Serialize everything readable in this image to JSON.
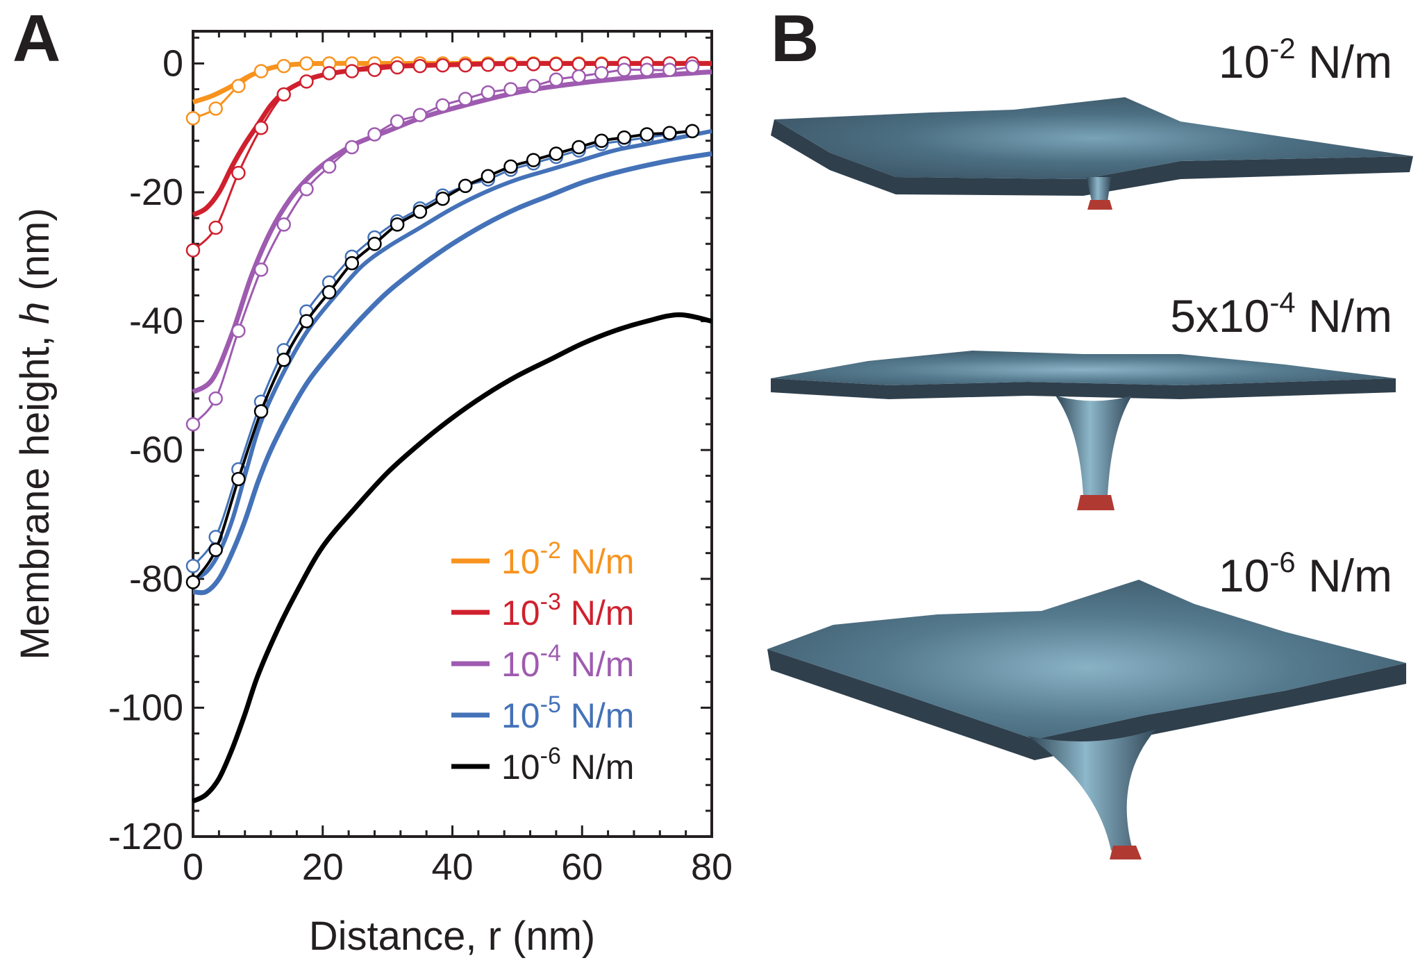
{
  "panels": {
    "a_label": "A",
    "b_label": "B"
  },
  "colors": {
    "orange": "#f7931e",
    "red": "#d0202e",
    "purple": "#9e5bb0",
    "blue": "#4472b8",
    "black": "#000000",
    "surface_top": "#5a7f93",
    "surface_side": "#2f3f4c",
    "tip": "#b03a32"
  },
  "chart_data": {
    "type": "line",
    "title": "",
    "xlabel": "Distance, r (nm)",
    "ylabel_prefix": "Membrane height, ",
    "ylabel_var": "h",
    "ylabel_suffix": " (nm)",
    "xlim": [
      0,
      80
    ],
    "ylim": [
      -120,
      5
    ],
    "xticks": [
      0,
      20,
      40,
      60,
      80
    ],
    "yticks": [
      0,
      -20,
      -40,
      -60,
      -80,
      -100,
      -120
    ],
    "series": [
      {
        "name": "1e-2 solid",
        "legend_base": "10",
        "legend_exp": "-2",
        "legend_unit": " N/m",
        "color_key": "orange",
        "marker": false,
        "x": [
          0,
          3,
          6,
          9,
          12,
          15,
          20,
          30,
          40,
          60,
          80
        ],
        "y": [
          -6,
          -5,
          -3.5,
          -1.8,
          -0.7,
          -0.2,
          0,
          0,
          0,
          0,
          0
        ]
      },
      {
        "name": "1e-2 markers",
        "color_key": "orange",
        "marker": true,
        "x": [
          0,
          3.5,
          7,
          10.5,
          14,
          17.5,
          21,
          24.5,
          28,
          31.5,
          35,
          38.5,
          42,
          45.5,
          49,
          52.5,
          56,
          59.5,
          63,
          66.5,
          70,
          73.5,
          77
        ],
        "y": [
          -8.5,
          -7,
          -3.5,
          -1.2,
          -0.4,
          0,
          0,
          0,
          0,
          0,
          0,
          0,
          0,
          0,
          0,
          0,
          0,
          0,
          0,
          0,
          0,
          0,
          0
        ]
      },
      {
        "name": "1e-3 solid",
        "legend_base": "10",
        "legend_exp": "-3",
        "legend_unit": " N/m",
        "color_key": "red",
        "marker": false,
        "x": [
          0,
          2,
          4,
          6,
          8,
          10,
          12,
          14,
          17,
          20,
          25,
          30,
          40,
          50,
          60,
          80
        ],
        "y": [
          -23.5,
          -22.5,
          -20,
          -16,
          -12.5,
          -9.5,
          -6.5,
          -4.5,
          -2.8,
          -1.8,
          -1,
          -0.5,
          -0.2,
          0,
          0,
          0
        ]
      },
      {
        "name": "1e-3 markers",
        "color_key": "red",
        "marker": true,
        "x": [
          0,
          3.5,
          7,
          10.5,
          14,
          17.5,
          21,
          24.5,
          28,
          31.5,
          35,
          38.5,
          42,
          45.5,
          49,
          52.5,
          56,
          59.5,
          63,
          66.5,
          70,
          73.5,
          77
        ],
        "y": [
          -29,
          -25.5,
          -17,
          -10,
          -4.8,
          -2.8,
          -1.5,
          -1.2,
          -1,
          -0.6,
          -0.4,
          -0.3,
          -0.3,
          -0.2,
          -0.2,
          -0.1,
          -0.1,
          -0.1,
          -0.1,
          0,
          0,
          0,
          0
        ]
      },
      {
        "name": "1e-4 solid",
        "legend_base": "10",
        "legend_exp": "-4",
        "legend_unit": " N/m",
        "color_key": "purple",
        "marker": false,
        "x": [
          0,
          3,
          6,
          9,
          12,
          15,
          18,
          21,
          25,
          30,
          35,
          40,
          50,
          60,
          70,
          80
        ],
        "y": [
          -51,
          -49,
          -42,
          -33,
          -26,
          -21,
          -17.5,
          -15,
          -12.5,
          -10.5,
          -8.5,
          -7,
          -4.5,
          -3,
          -2,
          -1.3
        ]
      },
      {
        "name": "1e-4 markers",
        "color_key": "purple",
        "marker": true,
        "x": [
          0,
          3.5,
          7,
          10.5,
          14,
          17.5,
          21,
          24.5,
          28,
          31.5,
          35,
          38.5,
          42,
          45.5,
          49,
          52.5,
          56,
          59.5,
          63,
          66.5,
          70,
          73.5,
          77
        ],
        "y": [
          -56,
          -52,
          -41.5,
          -32,
          -25,
          -19.5,
          -16,
          -13,
          -11,
          -9,
          -8,
          -6.5,
          -5.5,
          -4.5,
          -4,
          -3.5,
          -2.5,
          -2,
          -1.5,
          -1,
          -1,
          -1,
          -0.5
        ]
      },
      {
        "name": "1e-5 solid",
        "legend_base": "10",
        "legend_exp": "-5",
        "legend_unit": " N/m",
        "color_key": "blue",
        "marker": false,
        "x": [
          0,
          2,
          4,
          6,
          8,
          10,
          12,
          15,
          18,
          22,
          26,
          30,
          35,
          40,
          45,
          50,
          55,
          60,
          65,
          70,
          75,
          80
        ],
        "y": [
          -82,
          -82,
          -80,
          -76,
          -71,
          -65,
          -60,
          -54,
          -49,
          -44,
          -39.5,
          -35.5,
          -31.5,
          -28,
          -25,
          -22.5,
          -20.5,
          -18.5,
          -17,
          -15.8,
          -14.8,
          -14
        ]
      },
      {
        "name": "1e-5 markers",
        "color_key": "blue",
        "marker": true,
        "x": [
          0,
          3.5,
          7,
          10.5,
          14,
          17.5,
          21,
          24.5,
          28,
          31.5,
          35,
          38.5,
          42,
          45.5,
          49,
          52.5,
          56,
          59.5,
          63,
          66.5,
          70,
          73.5,
          77
        ],
        "y": [
          -78,
          -73.5,
          -63,
          -52.5,
          -44.5,
          -38.5,
          -34,
          -30,
          -27,
          -24.5,
          -22.5,
          -20.5,
          -19,
          -18,
          -16.5,
          -15.5,
          -14.5,
          -13.5,
          -12.5,
          -12,
          -11.5,
          -11,
          -10.5
        ]
      },
      {
        "name": "1e-6 solid",
        "legend_base": "10",
        "legend_exp": "-6",
        "legend_unit": " N/m",
        "color_key": "black",
        "marker": false,
        "x": [
          0,
          2,
          4,
          6,
          8,
          10,
          13,
          16,
          20,
          25,
          30,
          35,
          40,
          45,
          50,
          55,
          60,
          65,
          70,
          75,
          80
        ],
        "y": [
          -114.5,
          -113.5,
          -111,
          -106.5,
          -101,
          -95,
          -88,
          -82,
          -75,
          -69,
          -63.5,
          -59,
          -55,
          -51.5,
          -48.5,
          -46,
          -43.5,
          -41.5,
          -40,
          -39,
          -40
        ]
      },
      {
        "name": "1e-6 lower markers",
        "color_key": "black",
        "marker": true,
        "x": [
          0,
          2,
          4,
          6,
          8,
          10,
          12,
          15,
          18,
          22,
          26,
          30,
          35,
          40,
          45,
          50,
          55,
          60,
          65,
          70,
          75,
          80
        ],
        "y": [
          -80,
          -79,
          -76,
          -71,
          -64,
          -57,
          -52,
          -46,
          -41,
          -36,
          -31.5,
          -28.5,
          -25.5,
          -22.5,
          -20,
          -18,
          -16.5,
          -15,
          -13.5,
          -12.5,
          -11.5,
          -10.5
        ],
        "marker_x": [
          0,
          3.5,
          7,
          10.5,
          14,
          17.5,
          21,
          24.5,
          28,
          31.5,
          35,
          38.5,
          42,
          45.5,
          49,
          52.5,
          56,
          59.5,
          63,
          66.5,
          70,
          73.5,
          77
        ],
        "marker_y": [
          -80.5,
          -75.5,
          -64.5,
          -54,
          -46,
          -40,
          -35.5,
          -31,
          -28,
          -25,
          -23,
          -21,
          -19,
          -17.5,
          -16,
          -15,
          -14,
          -13,
          -12,
          -11.5,
          -11,
          -10.8,
          -10.5
        ]
      }
    ],
    "legend": [
      {
        "base": "10",
        "exp": "-2",
        "unit": " N/m",
        "color_key": "orange"
      },
      {
        "base": "10",
        "exp": "-3",
        "unit": " N/m",
        "color_key": "red"
      },
      {
        "base": "10",
        "exp": "-4",
        "unit": " N/m",
        "color_key": "purple"
      },
      {
        "base": "10",
        "exp": "-5",
        "unit": " N/m",
        "color_key": "blue"
      },
      {
        "base": "10",
        "exp": "-6",
        "unit": " N/m",
        "color_key": "black"
      }
    ]
  },
  "surfaces": [
    {
      "base": "10",
      "exp": "-2",
      "unit": " N/m"
    },
    {
      "base": "5x10",
      "exp": "-4",
      "unit": " N/m"
    },
    {
      "base": "10",
      "exp": "-6",
      "unit": " N/m"
    }
  ]
}
